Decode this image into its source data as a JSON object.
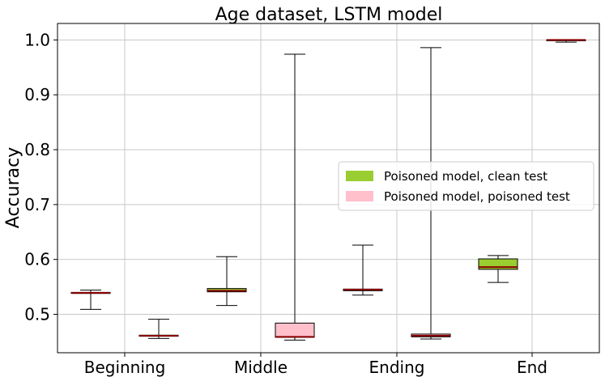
{
  "chart_data": {
    "type": "box",
    "title": "Age dataset, LSTM model",
    "xlabel": "",
    "ylabel": "Accuracy",
    "ylim": [
      0.43,
      1.03
    ],
    "yticks": [
      0.5,
      0.6,
      0.7,
      0.8,
      0.9,
      1.0
    ],
    "ytick_labels": [
      "0.5",
      "0.6",
      "0.7",
      "0.8",
      "0.9",
      "1.0"
    ],
    "categories": [
      "Beginning",
      "Middle",
      "Ending",
      "End"
    ],
    "grid": true,
    "legend_position": "center-right",
    "series": [
      {
        "name": "Poisoned model, clean test",
        "color": "#9acd32",
        "boxes": [
          {
            "category": "Beginning",
            "whisker_low": 0.509,
            "q1": 0.538,
            "median": 0.539,
            "q3": 0.54,
            "whisker_high": 0.544
          },
          {
            "category": "Middle",
            "whisker_low": 0.516,
            "q1": 0.541,
            "median": 0.543,
            "q3": 0.547,
            "whisker_high": 0.605
          },
          {
            "category": "Ending",
            "whisker_low": 0.535,
            "q1": 0.543,
            "median": 0.545,
            "q3": 0.546,
            "whisker_high": 0.626
          },
          {
            "category": "End",
            "whisker_low": 0.558,
            "q1": 0.582,
            "median": 0.586,
            "q3": 0.601,
            "whisker_high": 0.607
          }
        ]
      },
      {
        "name": "Poisoned model, poisoned test",
        "color": "#ffc0cb",
        "boxes": [
          {
            "category": "Beginning",
            "whisker_low": 0.456,
            "q1": 0.46,
            "median": 0.461,
            "q3": 0.462,
            "whisker_high": 0.491
          },
          {
            "category": "Middle",
            "whisker_low": 0.453,
            "q1": 0.458,
            "median": 0.459,
            "q3": 0.484,
            "whisker_high": 0.974
          },
          {
            "category": "Ending",
            "whisker_low": 0.455,
            "q1": 0.459,
            "median": 0.461,
            "q3": 0.464,
            "whisker_high": 0.986
          },
          {
            "category": "End",
            "whisker_low": 0.996,
            "q1": 0.999,
            "median": 1.0,
            "q3": 1.0,
            "whisker_high": 1.0
          }
        ]
      }
    ]
  }
}
